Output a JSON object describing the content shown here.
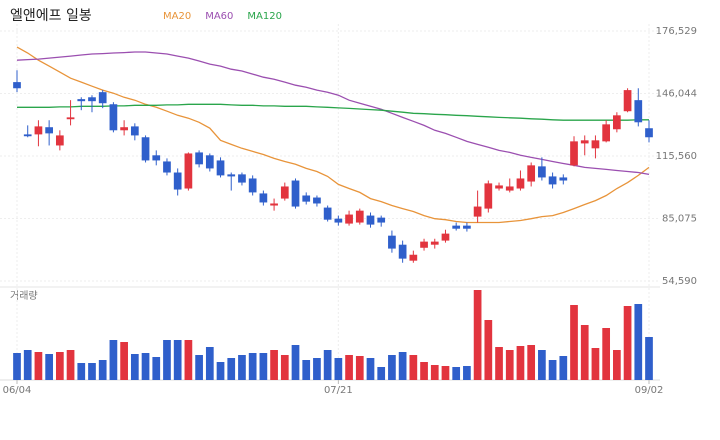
{
  "chart_data": {
    "type": "candlestick",
    "title": "엘앤에프 일봉",
    "categories": [
      "06/04",
      null,
      null,
      null,
      null,
      null,
      null,
      null,
      null,
      null,
      null,
      null,
      null,
      null,
      null,
      null,
      null,
      null,
      null,
      null,
      null,
      null,
      null,
      null,
      null,
      null,
      null,
      null,
      null,
      null,
      "07/21",
      null,
      null,
      null,
      null,
      null,
      null,
      null,
      null,
      null,
      null,
      null,
      null,
      null,
      null,
      null,
      null,
      null,
      null,
      null,
      null,
      null,
      null,
      null,
      null,
      null,
      null,
      null,
      null,
      "09/02"
    ],
    "open": [
      151600,
      126100,
      126100,
      129600,
      120700,
      133500,
      143300,
      144200,
      146700,
      140800,
      128100,
      130000,
      124700,
      115900,
      112900,
      107500,
      99700,
      117300,
      115900,
      113400,
      106600,
      106600,
      104600,
      97300,
      91400,
      94800,
      103600,
      96300,
      95300,
      90400,
      85000,
      82600,
      83100,
      86500,
      85500,
      76700,
      72300,
      64500,
      70800,
      72300,
      74300,
      81600,
      81600,
      86000,
      89900,
      99700,
      98700,
      99700,
      103100,
      110500,
      105600,
      105100,
      111000,
      121700,
      119300,
      122700,
      128600,
      137400,
      142800,
      129100
    ],
    "high": [
      157400,
      130500,
      133000,
      133000,
      128100,
      142800,
      144200,
      145200,
      147700,
      141800,
      133000,
      131500,
      125600,
      118300,
      114400,
      109500,
      117300,
      118300,
      116800,
      114900,
      107500,
      107500,
      106100,
      98700,
      94800,
      102600,
      104600,
      97800,
      96300,
      91400,
      86500,
      88900,
      89900,
      88000,
      86500,
      79200,
      74300,
      69400,
      75200,
      75200,
      79600,
      83100,
      83100,
      98700,
      103600,
      102600,
      104600,
      108500,
      112400,
      114900,
      107500,
      106600,
      125200,
      125600,
      125600,
      133000,
      136900,
      148600,
      148600,
      133000
    ],
    "low": [
      146700,
      124700,
      120300,
      120700,
      118300,
      130500,
      137900,
      136900,
      138900,
      127100,
      125600,
      123200,
      112400,
      111000,
      106100,
      96300,
      98700,
      110000,
      108000,
      105100,
      98700,
      101200,
      96300,
      91400,
      88900,
      93800,
      89900,
      91900,
      90900,
      83600,
      81600,
      81600,
      82100,
      80600,
      81100,
      68400,
      63500,
      63500,
      69400,
      70400,
      73300,
      79200,
      78700,
      83100,
      88000,
      98700,
      97800,
      98700,
      100700,
      103600,
      99700,
      101700,
      110500,
      115900,
      114400,
      122200,
      127100,
      136900,
      130000,
      122200
    ],
    "close": [
      148600,
      125200,
      130000,
      126600,
      125600,
      134400,
      142300,
      142300,
      141300,
      128100,
      129600,
      125600,
      113400,
      113400,
      107500,
      99200,
      116800,
      111500,
      109500,
      106100,
      105600,
      102600,
      97800,
      92900,
      92400,
      100700,
      90900,
      93300,
      92400,
      84500,
      83100,
      87000,
      88900,
      82100,
      83100,
      70400,
      65500,
      67400,
      73800,
      73800,
      77700,
      80100,
      80100,
      90900,
      102200,
      101200,
      100700,
      104600,
      111000,
      105100,
      101700,
      103600,
      122700,
      123200,
      123200,
      131000,
      135400,
      147700,
      132000,
      124700
    ],
    "up_color": "#e2343e",
    "down_color": "#2f5fcb",
    "series": [
      {
        "name": "MA20",
        "color": "#e8943a",
        "values": [
          168700,
          165800,
          162300,
          159400,
          156500,
          153500,
          151600,
          149600,
          147700,
          146200,
          144200,
          142800,
          140800,
          139300,
          137400,
          135400,
          134000,
          132000,
          129100,
          123200,
          121200,
          119300,
          117800,
          116300,
          114400,
          112900,
          111500,
          109500,
          108000,
          105600,
          101700,
          99700,
          97800,
          94800,
          93300,
          91400,
          89900,
          88500,
          86500,
          85000,
          84500,
          83600,
          83100,
          83100,
          83100,
          83100,
          83600,
          84100,
          85000,
          86000,
          86500,
          88000,
          89900,
          91900,
          93800,
          96300,
          99700,
          102600,
          106100,
          110000
        ]
      },
      {
        "name": "MA60",
        "color": "#9b4fb0",
        "values": [
          162300,
          162600,
          162800,
          163300,
          163800,
          164300,
          164800,
          165300,
          165500,
          165800,
          166000,
          166300,
          166300,
          165800,
          165300,
          164300,
          163300,
          161900,
          160400,
          159400,
          157900,
          157000,
          155500,
          154000,
          153000,
          151600,
          150100,
          149100,
          147700,
          146700,
          145200,
          142800,
          141300,
          139800,
          138400,
          136400,
          134400,
          132500,
          130500,
          128100,
          126600,
          124700,
          122700,
          121200,
          119800,
          118300,
          117300,
          115900,
          114900,
          113900,
          112900,
          111900,
          111000,
          110000,
          109500,
          109000,
          108500,
          108000,
          107500,
          106600
        ]
      },
      {
        "name": "MA120",
        "color": "#2aa54b",
        "values": [
          139300,
          139300,
          139300,
          139300,
          139500,
          139500,
          139800,
          139800,
          139800,
          140000,
          140000,
          140300,
          140300,
          140300,
          140500,
          140500,
          140800,
          140800,
          140800,
          140800,
          140500,
          140300,
          140300,
          140000,
          140000,
          139800,
          139800,
          139800,
          139500,
          139300,
          139000,
          138800,
          138500,
          138200,
          137900,
          137400,
          136900,
          136400,
          136200,
          135900,
          135700,
          135400,
          135200,
          134900,
          134700,
          134400,
          134200,
          134000,
          133700,
          133500,
          133200,
          133000,
          133000,
          133000,
          133000,
          133000,
          133000,
          133000,
          133200,
          133200
        ]
      }
    ],
    "ylim": [
      54590,
      176529
    ],
    "yticks": [
      {
        "value": 176529,
        "label": "176,529"
      },
      {
        "value": 146044,
        "label": "146,044"
      },
      {
        "value": 115560,
        "label": "115,560"
      },
      {
        "value": 85075,
        "label": "85,075"
      },
      {
        "value": 54590,
        "label": "54,590"
      }
    ],
    "volume": {
      "label": "거래량",
      "ylim": [
        0,
        90
      ],
      "values": [
        27,
        30,
        28,
        26,
        28,
        30,
        17,
        17,
        20,
        40,
        38,
        26,
        27,
        23,
        40,
        40,
        40,
        25,
        33,
        18,
        22,
        25,
        27,
        27,
        30,
        25,
        35,
        20,
        22,
        30,
        22,
        25,
        24,
        22,
        13,
        25,
        28,
        25,
        18,
        15,
        14,
        13,
        14,
        90,
        60,
        33,
        30,
        34,
        35,
        30,
        20,
        24,
        75,
        55,
        32,
        52,
        30,
        74,
        76,
        43
      ]
    },
    "grid": true
  }
}
